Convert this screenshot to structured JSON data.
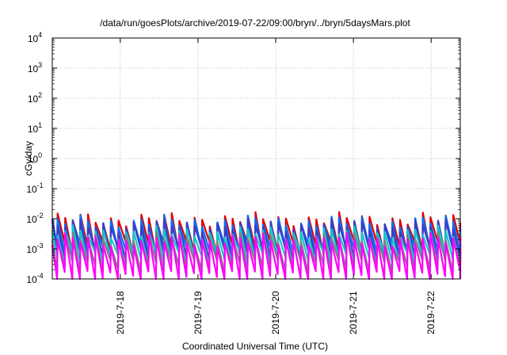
{
  "chart_data": {
    "type": "line",
    "title": "/data/run/goesPlots/archive/2019-07-22/09:00/bryn/../bryn/5daysMars.plot",
    "xlabel": "Coordinated Universal Time (UTC)",
    "ylabel": "cGy/day",
    "yscale": "log",
    "ylim": [
      0.0001,
      10000
    ],
    "xlim": [
      "2019-07-17 03:00",
      "2019-07-22 09:00"
    ],
    "x_ticks": [
      "2019-7-18",
      "2019-7-19",
      "2019-7-20",
      "2019-7-21",
      "2019-7-22"
    ],
    "y_ticks": [
      {
        "base": "10",
        "exp": "-4",
        "value": 0.0001
      },
      {
        "base": "10",
        "exp": "-3",
        "value": 0.001
      },
      {
        "base": "10",
        "exp": "-2",
        "value": 0.01
      },
      {
        "base": "10",
        "exp": "-1",
        "value": 0.1
      },
      {
        "base": "10",
        "exp": "0",
        "value": 1
      },
      {
        "base": "10",
        "exp": "1",
        "value": 10
      },
      {
        "base": "10",
        "exp": "2",
        "value": 100
      },
      {
        "base": "10",
        "exp": "3",
        "value": 1000
      },
      {
        "base": "10",
        "exp": "4",
        "value": 10000
      }
    ],
    "grid": true,
    "legend": "none",
    "sawtooth_period_hours": 2.35,
    "series": [
      {
        "color": "#e00000",
        "max": 0.0095,
        "min": 0.0011
      },
      {
        "color": "#0070ff",
        "max": 0.0075,
        "min": 0.00082
      },
      {
        "color": "#3c3cc8",
        "max": 0.0058,
        "min": 0.00065
      },
      {
        "color": "#10c8c8",
        "max": 0.0034,
        "min": 0.00048
      },
      {
        "color": "#808080",
        "max": 0.0022,
        "min": 0.00026
      },
      {
        "color": "#ff00ff",
        "max": 0.0019,
        "min": 0.00011
      }
    ]
  }
}
